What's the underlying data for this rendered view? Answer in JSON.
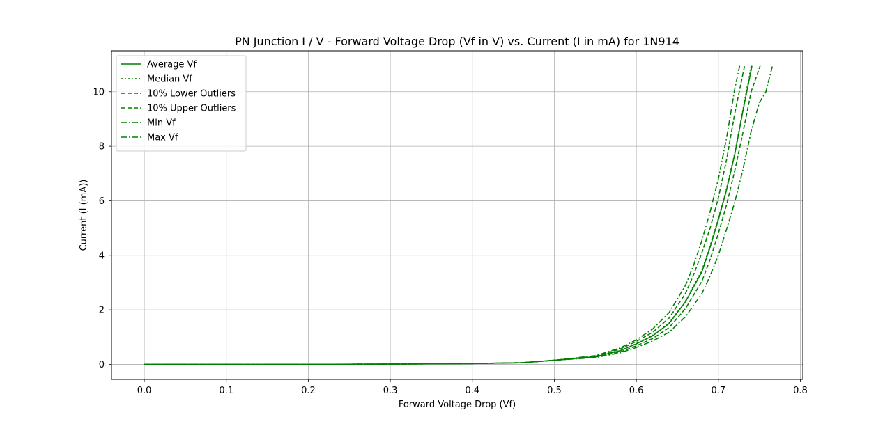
{
  "chart_data": {
    "type": "line",
    "title": "PN Junction I / V - Forward Voltage Drop (Vf in V) vs. Current (I in mA) for 1N914",
    "xlabel": "Forward Voltage Drop (Vf)",
    "ylabel": "Current (I (mA))",
    "xlim": [
      -0.04,
      0.803
    ],
    "ylim": [
      -0.55,
      11.5
    ],
    "xticks": [
      "0.0",
      "0.1",
      "0.2",
      "0.3",
      "0.4",
      "0.5",
      "0.6",
      "0.7",
      "0.8"
    ],
    "yticks": [
      "0",
      "2",
      "4",
      "6",
      "8",
      "10"
    ],
    "grid": true,
    "legend_position": "upper-left",
    "color": "#008000",
    "series": [
      {
        "name": "Average Vf",
        "style": "solid",
        "points": [
          [
            0.0,
            0.0
          ],
          [
            0.1,
            0.0
          ],
          [
            0.2,
            0.0
          ],
          [
            0.3,
            0.01
          ],
          [
            0.4,
            0.03
          ],
          [
            0.46,
            0.06
          ],
          [
            0.5,
            0.15
          ],
          [
            0.55,
            0.28
          ],
          [
            0.58,
            0.5
          ],
          [
            0.6,
            0.75
          ],
          [
            0.62,
            1.05
          ],
          [
            0.64,
            1.5
          ],
          [
            0.66,
            2.3
          ],
          [
            0.68,
            3.4
          ],
          [
            0.69,
            4.3
          ],
          [
            0.7,
            5.3
          ],
          [
            0.71,
            6.4
          ],
          [
            0.72,
            7.7
          ],
          [
            0.73,
            9.3
          ],
          [
            0.741,
            10.95
          ]
        ]
      },
      {
        "name": "Median Vf",
        "style": "dotted",
        "points": [
          [
            0.0,
            0.0
          ],
          [
            0.1,
            0.0
          ],
          [
            0.2,
            0.0
          ],
          [
            0.3,
            0.01
          ],
          [
            0.4,
            0.03
          ],
          [
            0.46,
            0.06
          ],
          [
            0.5,
            0.15
          ],
          [
            0.55,
            0.28
          ],
          [
            0.58,
            0.5
          ],
          [
            0.6,
            0.76
          ],
          [
            0.62,
            1.07
          ],
          [
            0.64,
            1.52
          ],
          [
            0.66,
            2.33
          ],
          [
            0.68,
            3.45
          ],
          [
            0.69,
            4.35
          ],
          [
            0.7,
            5.35
          ],
          [
            0.71,
            6.45
          ],
          [
            0.72,
            7.75
          ],
          [
            0.73,
            9.35
          ],
          [
            0.74,
            10.95
          ]
        ]
      },
      {
        "name": "10% Lower Outliers",
        "style": "dashed",
        "points": [
          [
            0.0,
            0.0
          ],
          [
            0.1,
            0.0
          ],
          [
            0.2,
            0.0
          ],
          [
            0.3,
            0.01
          ],
          [
            0.4,
            0.03
          ],
          [
            0.46,
            0.06
          ],
          [
            0.5,
            0.15
          ],
          [
            0.55,
            0.3
          ],
          [
            0.58,
            0.56
          ],
          [
            0.6,
            0.84
          ],
          [
            0.62,
            1.18
          ],
          [
            0.64,
            1.7
          ],
          [
            0.66,
            2.6
          ],
          [
            0.67,
            3.3
          ],
          [
            0.68,
            4.1
          ],
          [
            0.69,
            5.0
          ],
          [
            0.7,
            6.1
          ],
          [
            0.71,
            7.5
          ],
          [
            0.72,
            9.2
          ],
          [
            0.732,
            10.95
          ]
        ]
      },
      {
        "name": "10% Upper Outliers",
        "style": "dashed",
        "points": [
          [
            0.0,
            0.0
          ],
          [
            0.1,
            0.0
          ],
          [
            0.2,
            0.0
          ],
          [
            0.3,
            0.01
          ],
          [
            0.4,
            0.03
          ],
          [
            0.46,
            0.06
          ],
          [
            0.5,
            0.15
          ],
          [
            0.55,
            0.27
          ],
          [
            0.58,
            0.45
          ],
          [
            0.6,
            0.68
          ],
          [
            0.62,
            0.95
          ],
          [
            0.64,
            1.35
          ],
          [
            0.66,
            2.05
          ],
          [
            0.68,
            3.05
          ],
          [
            0.69,
            3.85
          ],
          [
            0.7,
            4.8
          ],
          [
            0.71,
            5.85
          ],
          [
            0.72,
            7.1
          ],
          [
            0.73,
            8.5
          ],
          [
            0.74,
            10.0
          ],
          [
            0.751,
            10.95
          ]
        ]
      },
      {
        "name": "Min Vf",
        "style": "dashdot",
        "points": [
          [
            0.0,
            0.0
          ],
          [
            0.1,
            0.0
          ],
          [
            0.2,
            0.0
          ],
          [
            0.3,
            0.01
          ],
          [
            0.4,
            0.03
          ],
          [
            0.46,
            0.06
          ],
          [
            0.5,
            0.15
          ],
          [
            0.55,
            0.32
          ],
          [
            0.58,
            0.6
          ],
          [
            0.6,
            0.9
          ],
          [
            0.62,
            1.3
          ],
          [
            0.64,
            1.9
          ],
          [
            0.66,
            2.9
          ],
          [
            0.67,
            3.65
          ],
          [
            0.68,
            4.55
          ],
          [
            0.69,
            5.6
          ],
          [
            0.7,
            6.8
          ],
          [
            0.71,
            8.3
          ],
          [
            0.72,
            10.1
          ],
          [
            0.726,
            10.95
          ]
        ]
      },
      {
        "name": "Max Vf",
        "style": "dashdot",
        "points": [
          [
            0.0,
            0.0
          ],
          [
            0.1,
            0.0
          ],
          [
            0.2,
            0.0
          ],
          [
            0.3,
            0.01
          ],
          [
            0.4,
            0.03
          ],
          [
            0.46,
            0.06
          ],
          [
            0.5,
            0.15
          ],
          [
            0.55,
            0.25
          ],
          [
            0.58,
            0.42
          ],
          [
            0.6,
            0.62
          ],
          [
            0.62,
            0.86
          ],
          [
            0.64,
            1.18
          ],
          [
            0.66,
            1.75
          ],
          [
            0.68,
            2.6
          ],
          [
            0.69,
            3.25
          ],
          [
            0.7,
            4.0
          ],
          [
            0.71,
            4.95
          ],
          [
            0.72,
            5.95
          ],
          [
            0.73,
            7.15
          ],
          [
            0.74,
            8.55
          ],
          [
            0.75,
            9.6
          ],
          [
            0.758,
            10.0
          ],
          [
            0.766,
            10.95
          ]
        ]
      }
    ]
  }
}
